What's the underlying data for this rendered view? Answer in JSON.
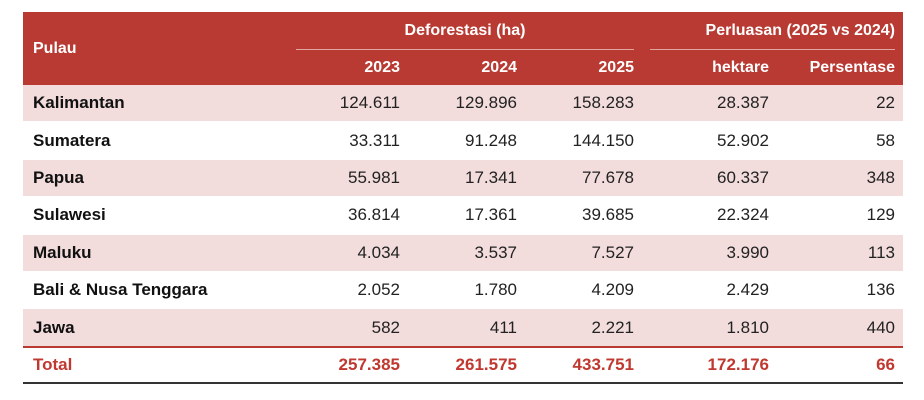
{
  "header": {
    "pulau": "Pulau",
    "group_deforestasi": "Deforestasi (ha)",
    "group_perluasan": "Perluasan (2025 vs 2024)",
    "columns": [
      "2023",
      "2024",
      "2025",
      "hektare",
      "Persentase"
    ]
  },
  "rows": [
    {
      "pulau": "Kalimantan",
      "y2023": "124.611",
      "y2024": "129.896",
      "y2025": "158.283",
      "hektare": "28.387",
      "persentase": "22"
    },
    {
      "pulau": "Sumatera",
      "y2023": "33.311",
      "y2024": "91.248",
      "y2025": "144.150",
      "hektare": "52.902",
      "persentase": "58"
    },
    {
      "pulau": "Papua",
      "y2023": "55.981",
      "y2024": "17.341",
      "y2025": "77.678",
      "hektare": "60.337",
      "persentase": "348"
    },
    {
      "pulau": "Sulawesi",
      "y2023": "36.814",
      "y2024": "17.361",
      "y2025": "39.685",
      "hektare": "22.324",
      "persentase": "129"
    },
    {
      "pulau": "Maluku",
      "y2023": "4.034",
      "y2024": "3.537",
      "y2025": "7.527",
      "hektare": "3.990",
      "persentase": "113"
    },
    {
      "pulau": "Bali & Nusa Tenggara",
      "y2023": "2.052",
      "y2024": "1.780",
      "y2025": "4.209",
      "hektare": "2.429",
      "persentase": "136"
    },
    {
      "pulau": "Jawa",
      "y2023": "582",
      "y2024": "411",
      "y2025": "2.221",
      "hektare": "1.810",
      "persentase": "440"
    }
  ],
  "total": {
    "pulau": "Total",
    "y2023": "257.385",
    "y2024": "261.575",
    "y2025": "433.751",
    "hektare": "172.176",
    "persentase": "66"
  },
  "colors": {
    "header_bg": "#b83a32",
    "row_shade": "#f3dcdc",
    "total_text": "#c0382f"
  }
}
